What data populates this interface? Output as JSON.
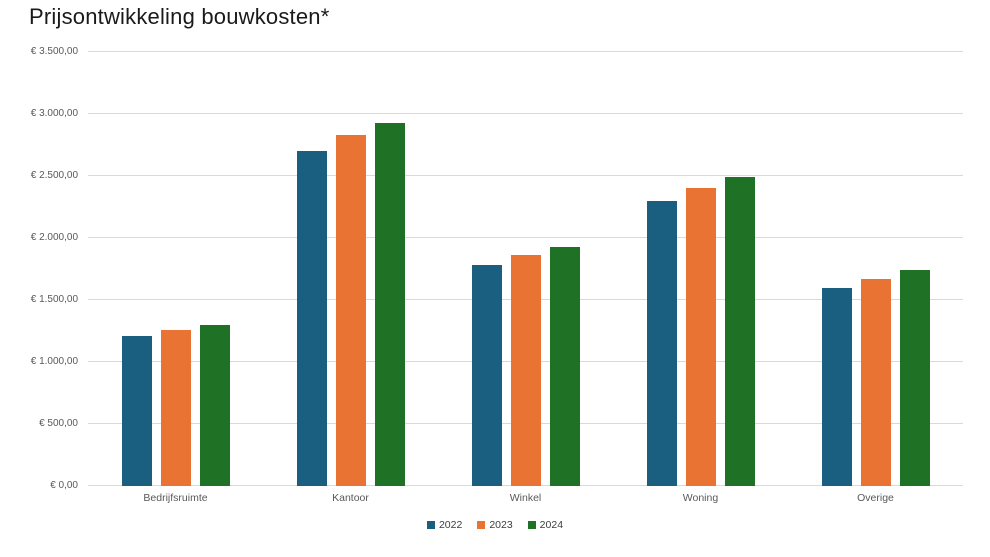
{
  "chart_data": {
    "type": "bar",
    "title": "Prijsontwikkeling bouwkosten*",
    "categories": [
      "Bedrijfsruimte",
      "Kantoor",
      "Winkel",
      "Woning",
      "Overige"
    ],
    "series": [
      {
        "name": "2022",
        "color": "#1B5F80",
        "values": [
          1210,
          2700,
          1780,
          2300,
          1600
        ]
      },
      {
        "name": "2023",
        "color": "#E87333",
        "values": [
          1260,
          2830,
          1860,
          2400,
          1670
        ]
      },
      {
        "name": "2024",
        "color": "#1F7125",
        "values": [
          1300,
          2930,
          1930,
          2490,
          1740
        ]
      }
    ],
    "ylim": [
      0,
      3500
    ],
    "ytick_step": 500,
    "yticks": [
      {
        "value": 0,
        "label": "€ 0,00"
      },
      {
        "value": 500,
        "label": "€ 500,00"
      },
      {
        "value": 1000,
        "label": "€ 1.000,00"
      },
      {
        "value": 1500,
        "label": "€ 1.500,00"
      },
      {
        "value": 2000,
        "label": "€ 2.000,00"
      },
      {
        "value": 2500,
        "label": "€ 2.500,00"
      },
      {
        "value": 3000,
        "label": "€ 3.000,00"
      },
      {
        "value": 3500,
        "label": "€ 3.500,00"
      }
    ],
    "grid": "horizontal",
    "gridline_color": "#D9D9D9",
    "legend_position": "bottom",
    "xlabel": "",
    "ylabel": ""
  }
}
